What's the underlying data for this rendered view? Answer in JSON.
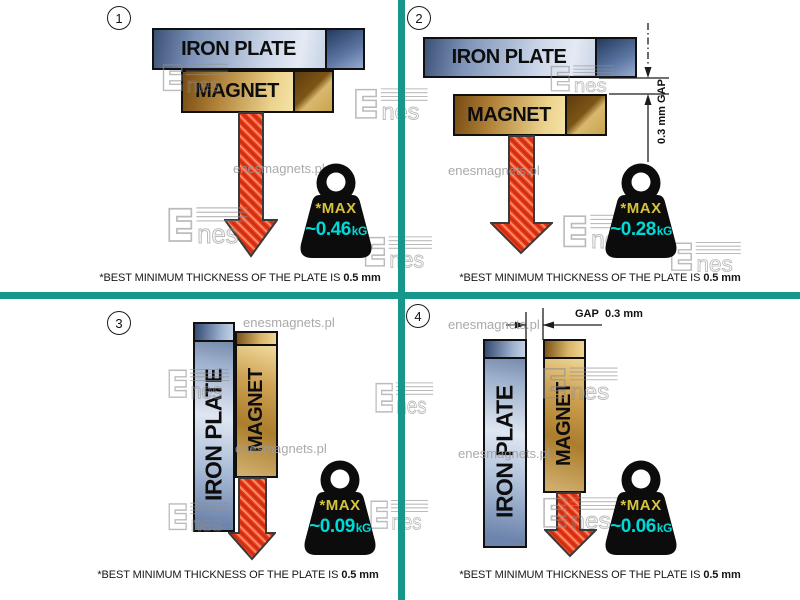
{
  "colors": {
    "divider_teal": "#17978b",
    "arrow_red": "#e8391c",
    "max_yellow": "#d6c33c",
    "value_cyan": "#00d9d6",
    "watermark_gray": "#9b9b9b"
  },
  "watermarks": {
    "site_text": "enesmagnets.pl",
    "logo_text": "nes"
  },
  "panels": [
    {
      "number": "1",
      "plate_label": "IRON PLATE",
      "magnet_label": "MAGNET",
      "max_label": "*MAX",
      "value": "~0.46",
      "unit": "kG",
      "caption_text": "*BEST MINIMUM THICKNESS OF THE PLATE IS",
      "caption_bold": "0.5 mm"
    },
    {
      "number": "2",
      "plate_label": "IRON PLATE",
      "magnet_label": "MAGNET",
      "max_label": "*MAX",
      "value": "~0.28",
      "unit": "kG",
      "gap_label": "GAP",
      "gap_value": "0.3 mm",
      "caption_text": "*BEST MINIMUM THICKNESS OF THE PLATE IS",
      "caption_bold": "0.5 mm"
    },
    {
      "number": "3",
      "plate_label": "IRON PLATE",
      "magnet_label": "MAGNET",
      "max_label": "*MAX",
      "value": "~0.09",
      "unit": "kG",
      "caption_text": "*BEST MINIMUM THICKNESS OF THE PLATE IS",
      "caption_bold": "0.5 mm"
    },
    {
      "number": "4",
      "plate_label": "IRON PLATE",
      "magnet_label": "MAGNET",
      "max_label": "*MAX",
      "value": "~0.06",
      "unit": "kG",
      "gap_label": "GAP",
      "gap_value": "0.3 mm",
      "caption_text": "*BEST MINIMUM THICKNESS OF THE PLATE IS",
      "caption_bold": "0.5 mm"
    }
  ]
}
